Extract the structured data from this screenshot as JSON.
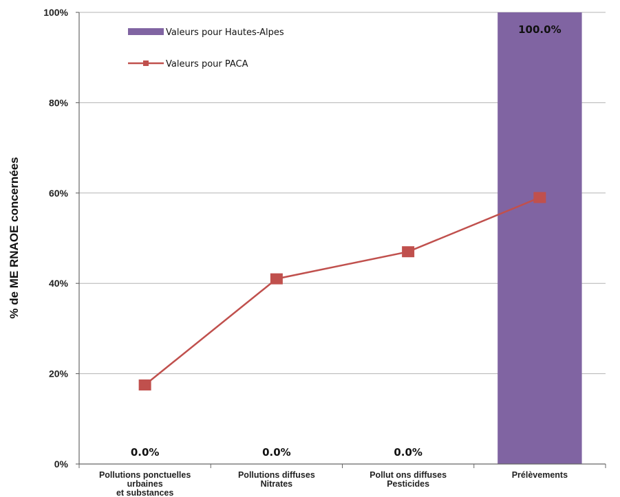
{
  "chart_data": {
    "type": "bar",
    "categories": [
      [
        "Pollutions ponctuelles",
        "urbaines",
        "et substances"
      ],
      [
        "Pollutions diffuses",
        "Nitrates"
      ],
      [
        "Pollut ons diffuses",
        "Pesticides"
      ],
      [
        "Prélèvements"
      ]
    ],
    "series": [
      {
        "name": "Valeurs pour Hautes-Alpes",
        "type": "bar",
        "color": "#8064a2",
        "values": [
          0,
          0,
          0,
          100
        ],
        "labels": [
          "0.0%",
          "0.0%",
          "0.0%",
          "100.0%"
        ]
      },
      {
        "name": "Valeurs pour PACA",
        "type": "line",
        "color": "#c0504d",
        "marker": "square",
        "values": [
          17.5,
          41,
          47,
          59
        ]
      }
    ],
    "ylabel": "% de ME RNAOE concernées",
    "ylim": [
      0,
      100
    ],
    "yticks": [
      0,
      20,
      40,
      60,
      80,
      100
    ],
    "ytick_labels": [
      "0%",
      "20%",
      "40%",
      "60%",
      "80%",
      "100%"
    ],
    "grid": true,
    "legend": "top-left"
  }
}
